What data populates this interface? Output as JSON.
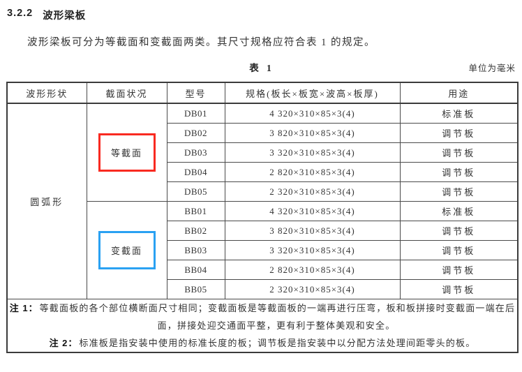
{
  "colors": {
    "equal_section_box": "#f92a21",
    "variable_section_box": "#2aa1f2",
    "text": "#2b2b2b"
  },
  "document": {
    "section_number": "3.2.2",
    "section_title": "波形梁板",
    "intro": "波形梁板可分为等截面和变截面两类。其尺寸规格应符合表 1 的规定。",
    "table_caption": "表 1",
    "unit_note": "单位为毫米"
  },
  "table": {
    "headers": [
      "波形形状",
      "截面状况",
      "型号",
      "规格(板长×板宽×波高×板厚)",
      "用途"
    ],
    "shape": "圆弧形",
    "groups": [
      {
        "section": "等截面",
        "box_color": "#f92a21",
        "rows": [
          {
            "model": "DB01",
            "spec": "4 320×310×85×3(4)",
            "usage": "标准板"
          },
          {
            "model": "DB02",
            "spec": "3 820×310×85×3(4)",
            "usage": "调节板"
          },
          {
            "model": "DB03",
            "spec": "3 320×310×85×3(4)",
            "usage": "调节板"
          },
          {
            "model": "DB04",
            "spec": "2 820×310×85×3(4)",
            "usage": "调节板"
          },
          {
            "model": "DB05",
            "spec": "2 320×310×85×3(4)",
            "usage": "调节板"
          }
        ]
      },
      {
        "section": "变截面",
        "box_color": "#2aa1f2",
        "rows": [
          {
            "model": "BB01",
            "spec": "4 320×310×85×3(4)",
            "usage": "标准板"
          },
          {
            "model": "BB02",
            "spec": "3 820×310×85×3(4)",
            "usage": "调节板"
          },
          {
            "model": "BB03",
            "spec": "3 320×310×85×3(4)",
            "usage": "调节板"
          },
          {
            "model": "BB04",
            "spec": "2 820×310×85×3(4)",
            "usage": "调节板"
          },
          {
            "model": "BB05",
            "spec": "2 320×310×85×3(4)",
            "usage": "调节板"
          }
        ]
      }
    ]
  },
  "notes": [
    {
      "label": "注 1：",
      "text": "等截面板的各个部位横断面尺寸相同；变截面板是等截面板的一端再进行压弯，板和板拼接时变截面一端在后面，拼接处迎交通面平整，更有利于整体美观和安全。"
    },
    {
      "label": "注 2：",
      "text": "标准板是指安装中使用的标准长度的板；调节板是指安装中以分配方法处理间距零头的板。"
    }
  ]
}
